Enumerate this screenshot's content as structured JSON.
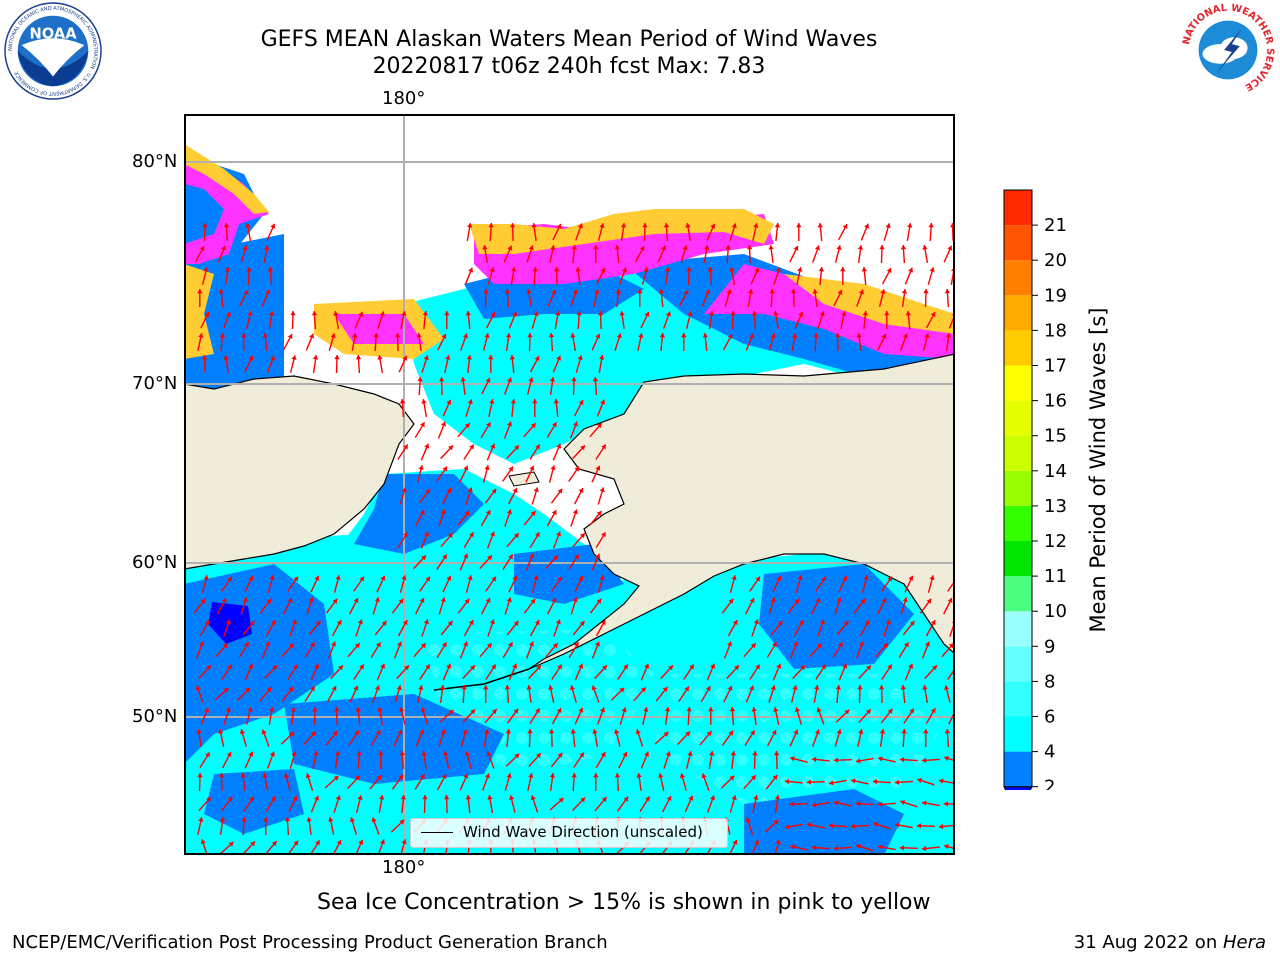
{
  "header": {
    "title_line1": "GEFS MEAN Alaskan Waters Mean Period of Wind Waves",
    "title_line2": "20220817 t06z 240h fcst   Max: 7.83"
  },
  "logos": {
    "noaa": {
      "text": "NOAA",
      "ring_text": "NATIONAL OCEANIC AND ATMOSPHERIC ADMINISTRATION · U.S. DEPARTMENT OF COMMERCE"
    },
    "nws": {
      "ring_text": "NATIONAL WEATHER SERVICE"
    }
  },
  "map": {
    "lon_label_top": "180°",
    "lon_label_bottom": "180°",
    "lat_labels": [
      "80°N",
      "70°N",
      "60°N",
      "50°N"
    ],
    "legend_label": "Wind Wave Direction (unscaled)",
    "colors": {
      "land": "#efedda",
      "ice_low": "#ff33ff",
      "ice_high": "#ffcc33",
      "arrow": "#ff0000",
      "grid": "#b0b0b0"
    }
  },
  "colorbar": {
    "title": "Mean Period of Wind Waves [s]",
    "ticks": [
      "2",
      "4",
      "6",
      "8",
      "9",
      "10",
      "11",
      "12",
      "13",
      "14",
      "15",
      "16",
      "17",
      "18",
      "19",
      "20",
      "21"
    ],
    "colors": [
      "#0080ff",
      "#00ffff",
      "#33ffff",
      "#66ffff",
      "#99ffff",
      "#4dff80",
      "#00e600",
      "#33ff00",
      "#99ff00",
      "#ccff00",
      "#e6ff00",
      "#ffff00",
      "#ffcc00",
      "#ffaa00",
      "#ff8000",
      "#ff5500",
      "#ff2a00"
    ],
    "under_color": "#0000ff"
  },
  "notes": {
    "sea_ice": "Sea Ice Concentration > 15% is shown in pink to yellow"
  },
  "footer": {
    "left": "NCEP/EMC/Verification Post Processing Product Generation Branch",
    "right_date": "31 Aug 2022 on ",
    "right_host": "Hera"
  }
}
